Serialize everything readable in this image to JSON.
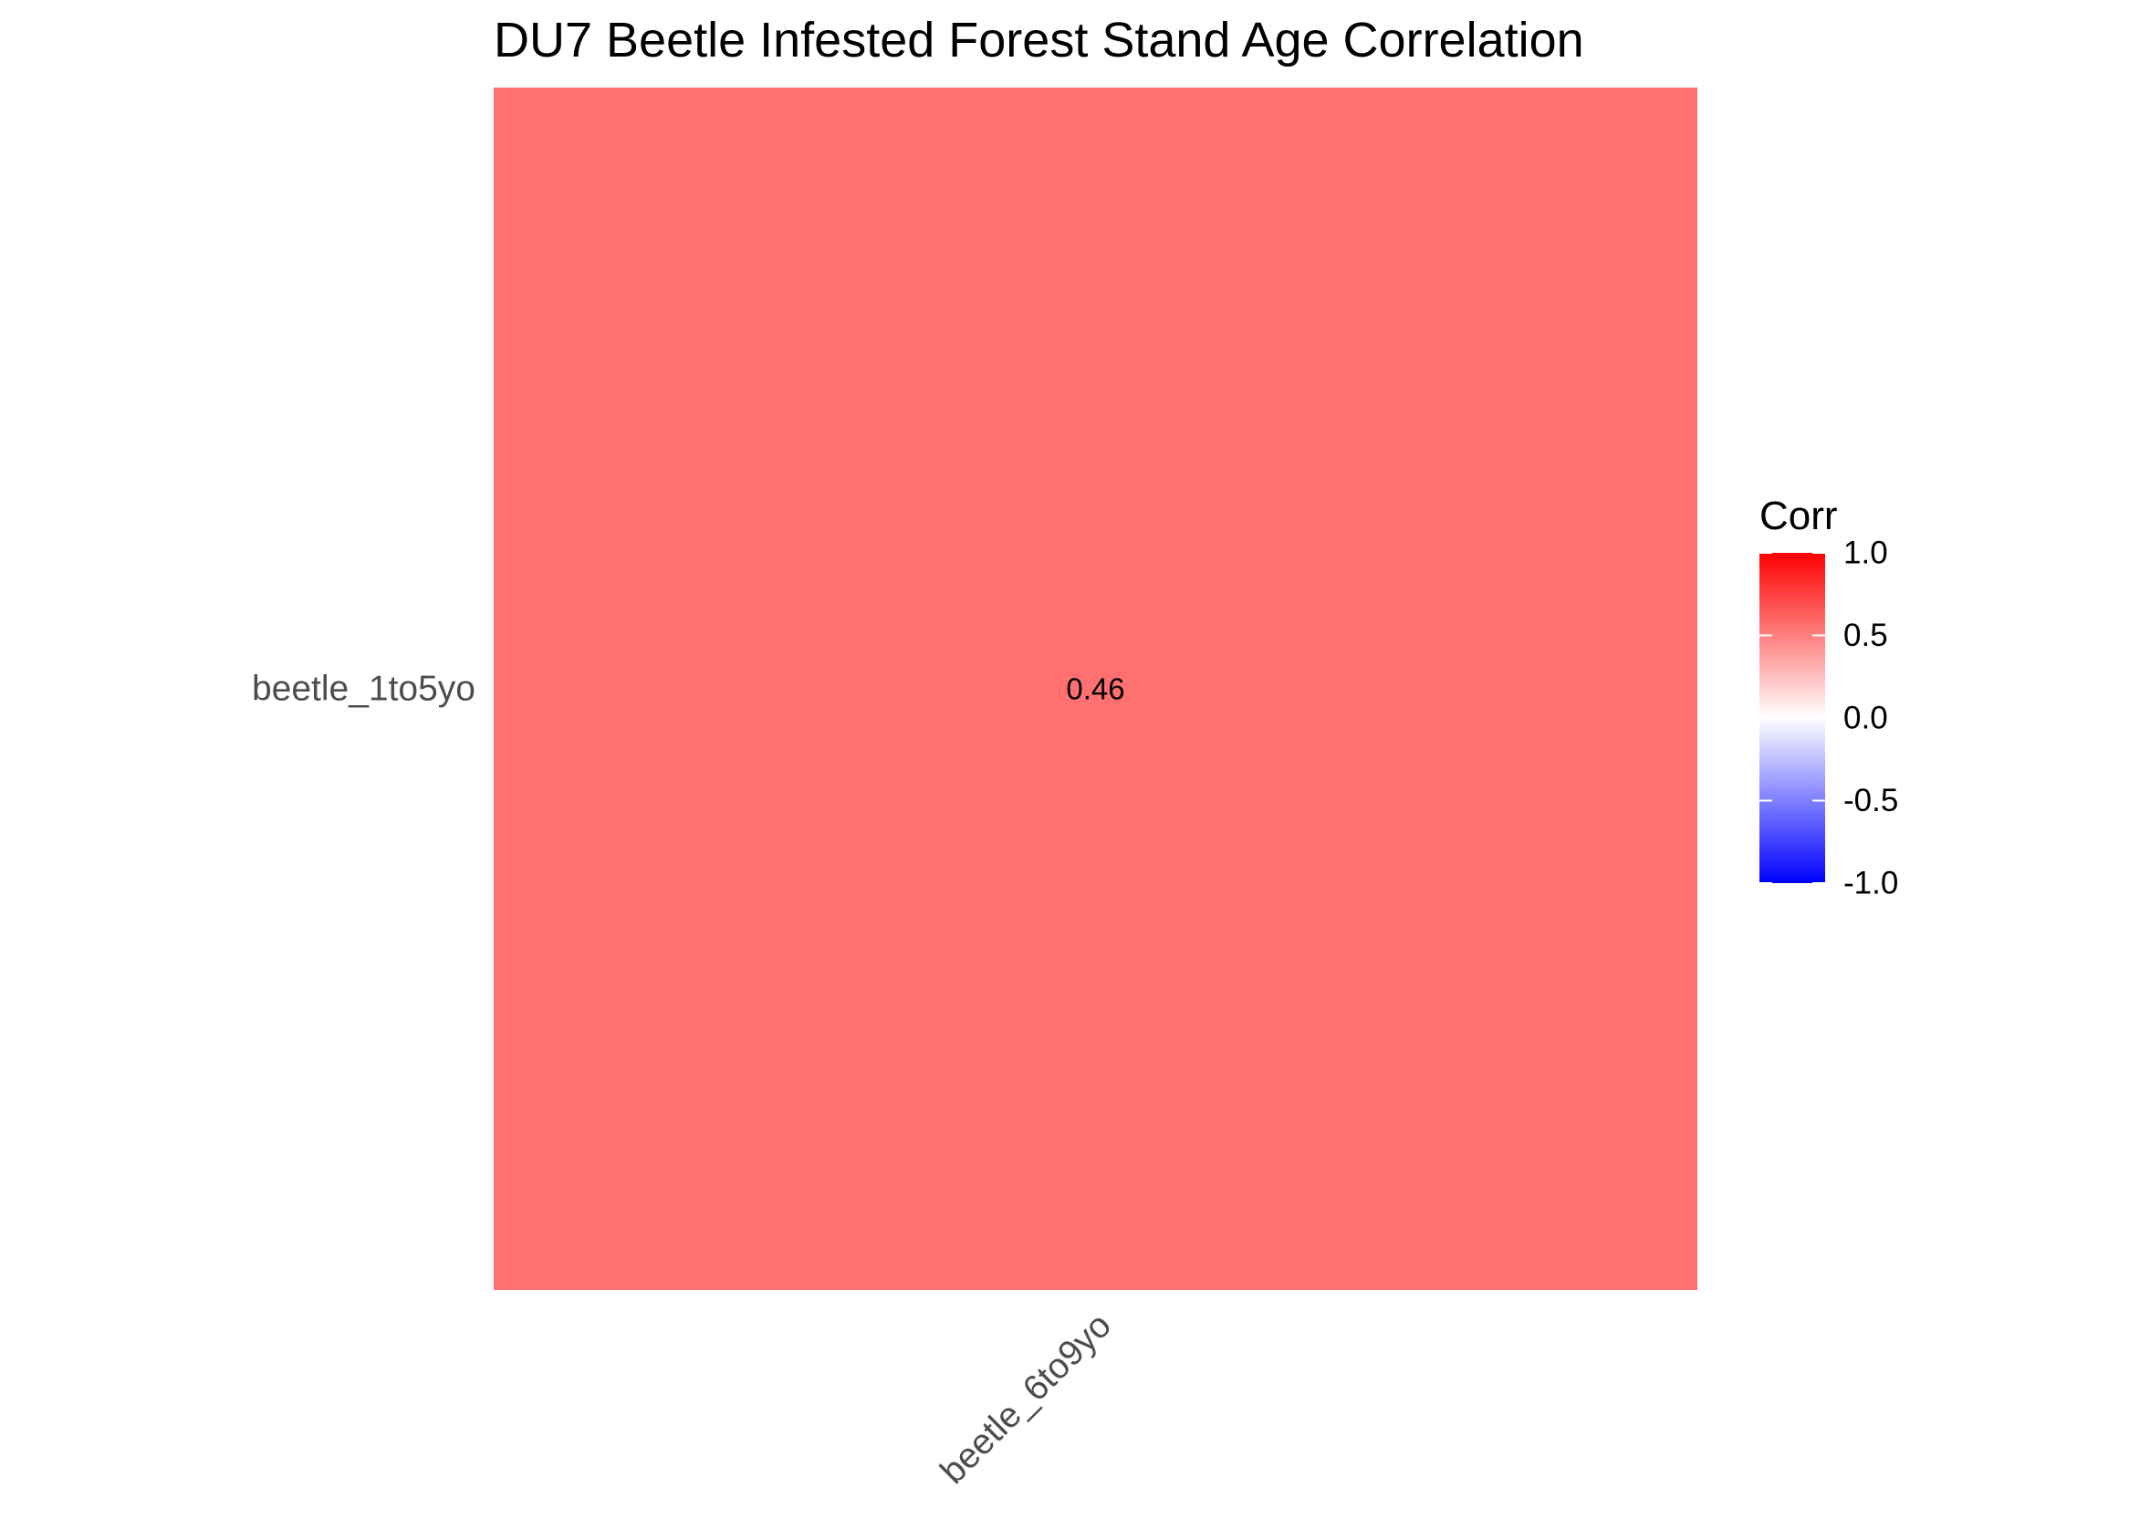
{
  "chart_data": {
    "type": "heatmap",
    "title": "DU7 Beetle Infested Forest Stand Age Correlation",
    "xlabel": "",
    "ylabel": "",
    "x_categories": [
      "beetle_6to9yo"
    ],
    "y_categories": [
      "beetle_1to5yo"
    ],
    "cells": [
      {
        "x": "beetle_6to9yo",
        "y": "beetle_1to5yo",
        "value": 0.46,
        "label": "0.46"
      }
    ],
    "legend": {
      "title": "Corr",
      "placement": "right",
      "range": [
        -1.0,
        1.0
      ],
      "ticks": [
        {
          "value": 1.0,
          "label": "1.0"
        },
        {
          "value": 0.5,
          "label": "0.5"
        },
        {
          "value": 0.0,
          "label": "0.0"
        },
        {
          "value": -0.5,
          "label": "-0.5"
        },
        {
          "value": -1.0,
          "label": "-1.0"
        }
      ],
      "colors": {
        "low": "#0000ff",
        "mid": "#ffffff",
        "high": "#ff0000"
      }
    },
    "grid": false
  }
}
